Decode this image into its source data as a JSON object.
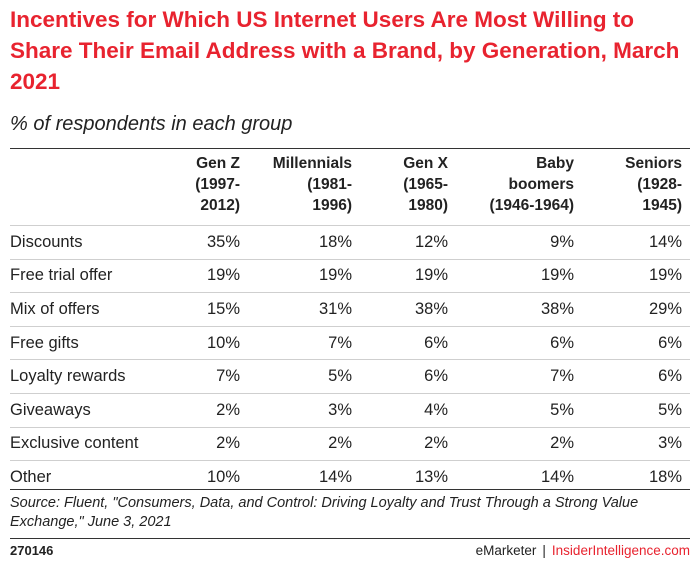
{
  "chart_data": {
    "type": "table",
    "title": "Incentives for Which US Internet Users Are Most Willing to Share Their Email Address with a Brand, by Generation, March 2021",
    "subtitle": "% of respondents in each group",
    "columns": [
      {
        "label": "Gen Z (1997-2012)",
        "lines": [
          "Gen Z",
          "(1997-",
          "2012)"
        ]
      },
      {
        "label": "Millennials (1981-1996)",
        "lines": [
          "Millennials",
          "(1981-",
          "1996)"
        ]
      },
      {
        "label": "Gen X (1965-1980)",
        "lines": [
          "Gen X",
          "(1965-",
          "1980)"
        ]
      },
      {
        "label": "Baby boomers (1946-1964)",
        "lines": [
          "Baby",
          "boomers",
          "(1946-1964)"
        ]
      },
      {
        "label": "Seniors (1928-1945)",
        "lines": [
          "Seniors",
          "(1928-",
          "1945)"
        ]
      }
    ],
    "rows": [
      {
        "label": "Discounts",
        "values": [
          "35%",
          "18%",
          "12%",
          "9%",
          "14%"
        ]
      },
      {
        "label": "Free trial offer",
        "values": [
          "19%",
          "19%",
          "19%",
          "19%",
          "19%"
        ]
      },
      {
        "label": "Mix of offers",
        "values": [
          "15%",
          "31%",
          "38%",
          "38%",
          "29%"
        ]
      },
      {
        "label": "Free gifts",
        "values": [
          "10%",
          "7%",
          "6%",
          "6%",
          "6%"
        ]
      },
      {
        "label": "Loyalty rewards",
        "values": [
          "7%",
          "5%",
          "6%",
          "7%",
          "6%"
        ]
      },
      {
        "label": "Giveaways",
        "values": [
          "2%",
          "3%",
          "4%",
          "5%",
          "5%"
        ]
      },
      {
        "label": "Exclusive content",
        "values": [
          "2%",
          "2%",
          "2%",
          "2%",
          "3%"
        ]
      },
      {
        "label": "Other",
        "values": [
          "10%",
          "14%",
          "13%",
          "14%",
          "18%"
        ]
      }
    ]
  },
  "source": "Source: Fluent, \"Consumers, Data, and Control: Driving Loyalty and Trust Through a Strong Value Exchange,\" June 3, 2021",
  "chart_id": "270146",
  "brand": {
    "emarketer": "eMarketer",
    "separator": "|",
    "insider": "InsiderIntelligence.com"
  },
  "colors": {
    "title": "#e8232f",
    "text": "#222222",
    "rule": "#333333",
    "row_divider": "#cfcfcf"
  }
}
